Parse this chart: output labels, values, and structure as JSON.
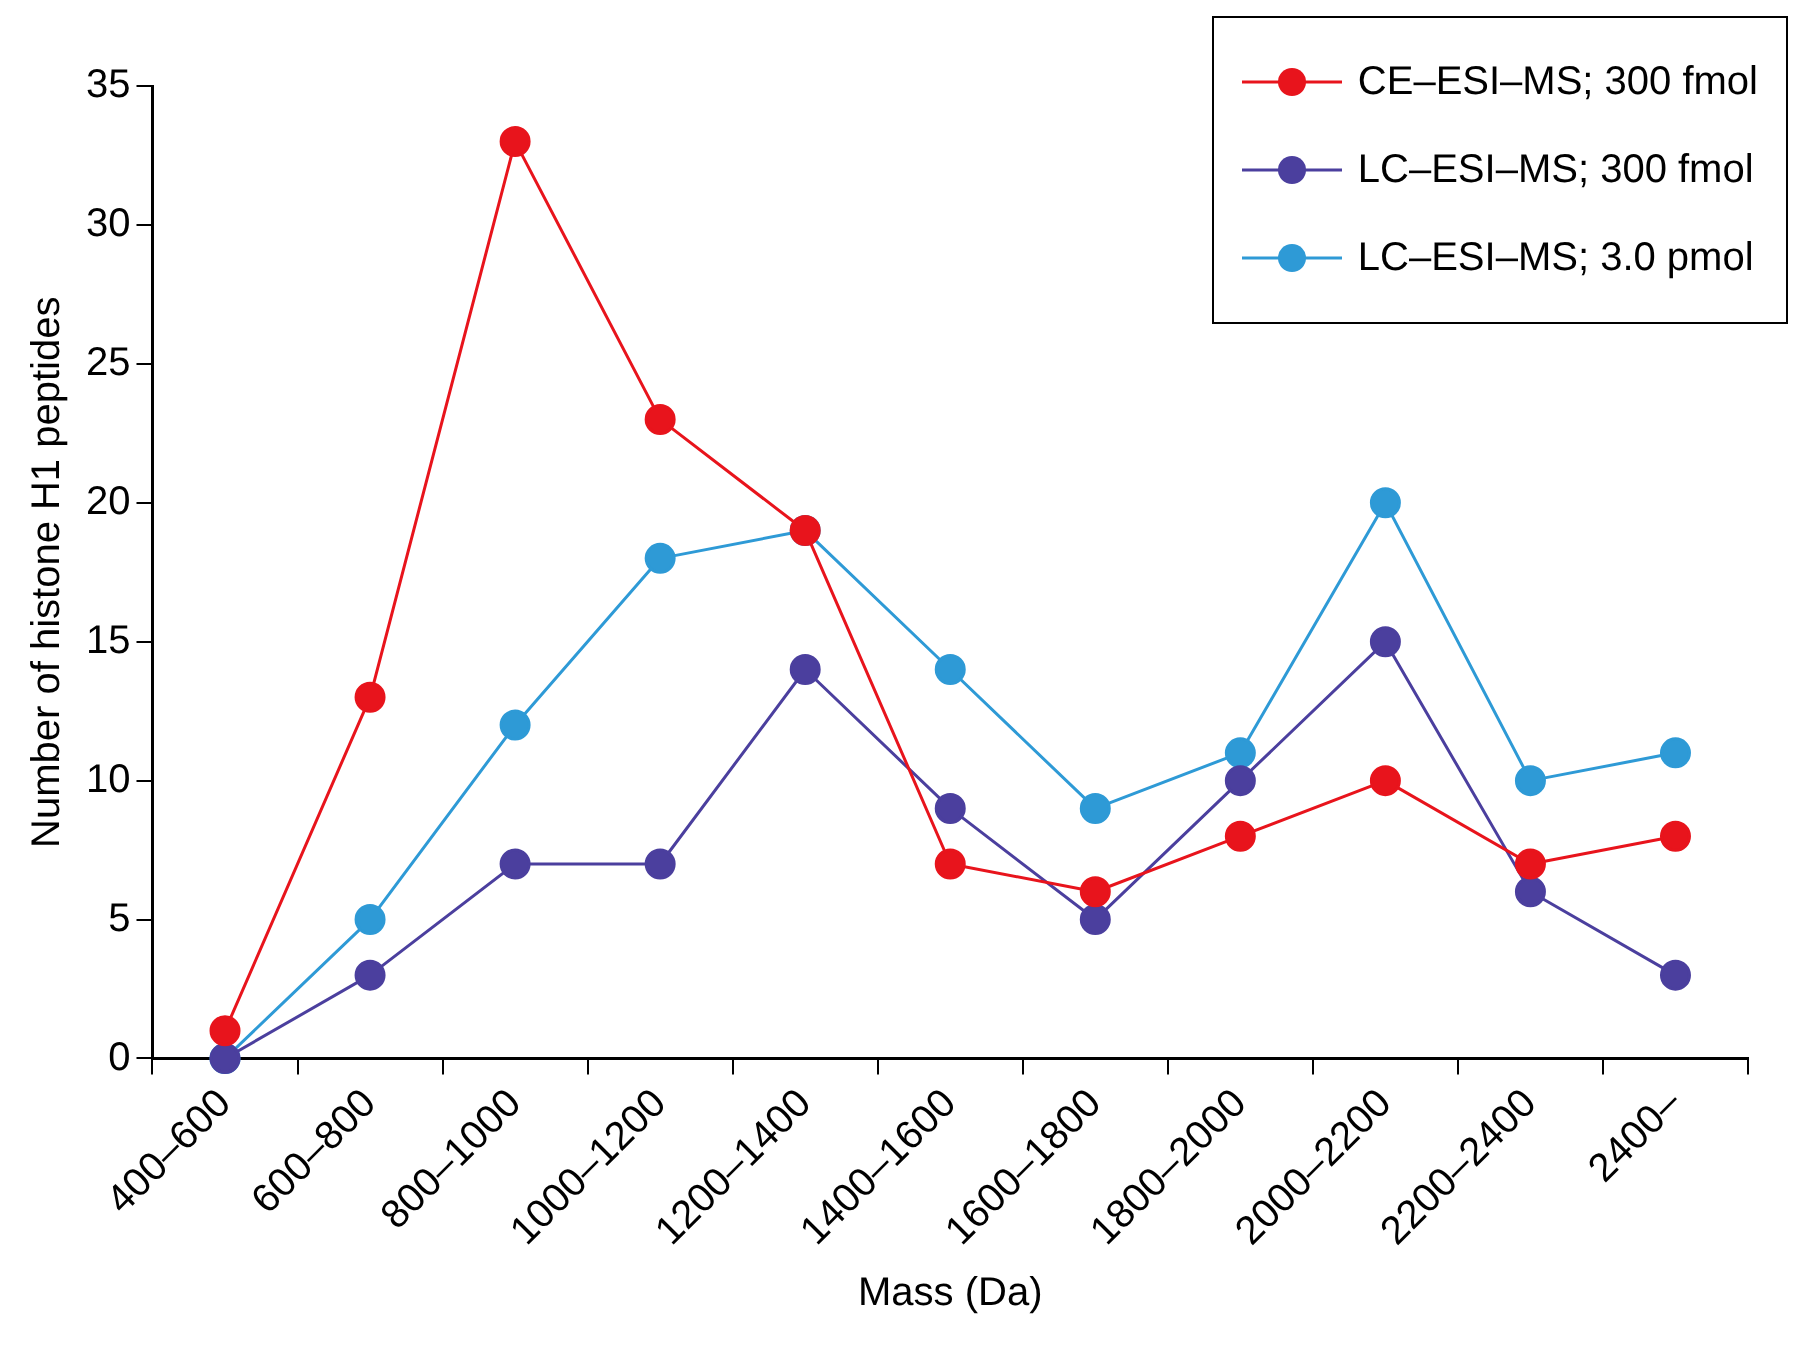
{
  "chart_data": {
    "type": "line",
    "xlabel": "Mass (Da)",
    "ylabel": "Number of histone H1 peptides",
    "categories": [
      "400–600",
      "600–800",
      "800–1000",
      "1000–1200",
      "1200–1400",
      "1400–1600",
      "1600–1800",
      "1800–2000",
      "2000–2200",
      "2200–2400",
      "2400–"
    ],
    "series": [
      {
        "name": "CE–ESI–MS; 300 fmol",
        "color": "#e8141c",
        "values": [
          1,
          13,
          33,
          23,
          19,
          7,
          6,
          8,
          10,
          7,
          8
        ]
      },
      {
        "name": "LC–ESI–MS; 300 fmol",
        "color": "#4b3f9e",
        "values": [
          0,
          3,
          7,
          7,
          14,
          9,
          5,
          10,
          15,
          6,
          3
        ]
      },
      {
        "name": "LC–ESI–MS; 3.0 pmol",
        "color": "#2e9ad6",
        "values": [
          0,
          5,
          12,
          18,
          19,
          14,
          9,
          11,
          20,
          10,
          11
        ]
      }
    ],
    "ylim": [
      0,
      35
    ],
    "yticks": [
      0,
      5,
      10,
      15,
      20,
      25,
      30,
      35
    ],
    "grid": false,
    "legend": "top right",
    "marker": "circle",
    "line_style": "solid"
  }
}
